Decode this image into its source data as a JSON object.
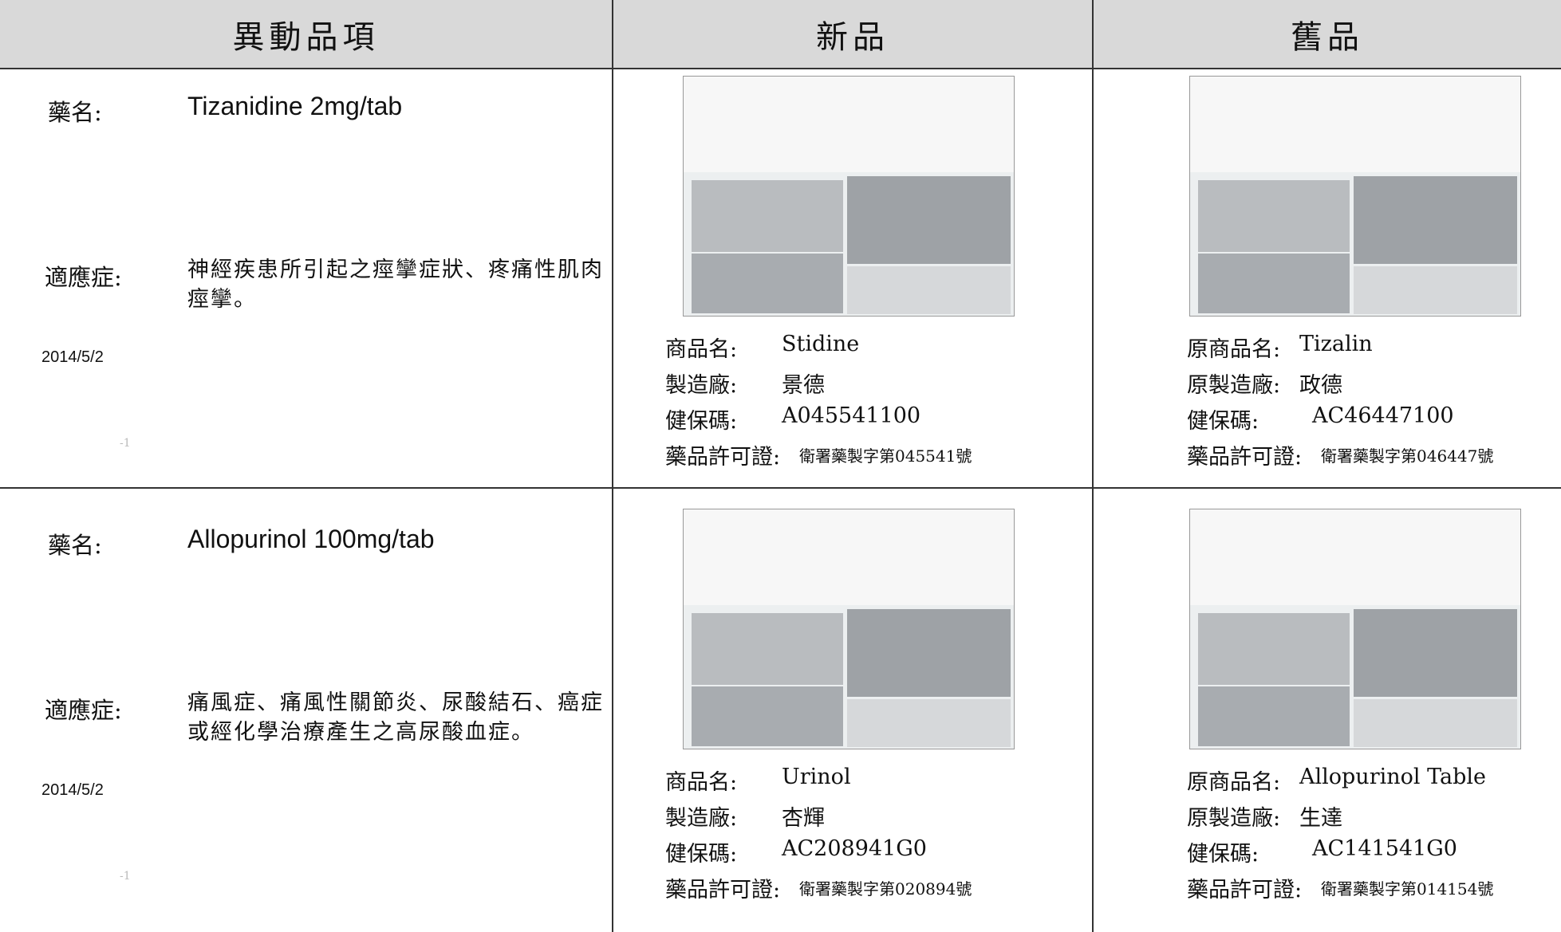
{
  "header": [
    "異動品項",
    "新品",
    "舊品"
  ],
  "rows": [
    {
      "drug_label": "藥名:",
      "drug_name": "Tizanidine 2mg/tab",
      "indication_label": "適應症:",
      "indication": "神經疾患所引起之痙攣症狀、疼痛性肌肉痙攣。",
      "date": "2014/5/2",
      "page_mark": "-1",
      "new": [
        {
          "label": "商品名:",
          "value": "Stidine"
        },
        {
          "label": "製造廠:",
          "value": "景德"
        },
        {
          "label": "健保碼:",
          "value": "A045541100"
        },
        {
          "label": "藥品許可證:",
          "value": "衛署藥製字第045541號"
        }
      ],
      "old": [
        {
          "label": "原商品名:",
          "value": "Tizalin"
        },
        {
          "label": "原製造廠:",
          "value": "政德"
        },
        {
          "label": "健保碼:",
          "value": "AC46447100"
        },
        {
          "label": "藥品許可證:",
          "value": "衛署藥製字第046447號"
        }
      ]
    },
    {
      "drug_label": "藥名:",
      "drug_name": "Allopurinol 100mg/tab",
      "indication_label": "適應症:",
      "indication": "痛風症、痛風性關節炎、尿酸結石、癌症或經化學治療產生之高尿酸血症。",
      "date": "2014/5/2",
      "page_mark": "-1",
      "new": [
        {
          "label": "商品名:",
          "value": "Urinol"
        },
        {
          "label": "製造廠:",
          "value": "杏輝"
        },
        {
          "label": "健保碼:",
          "value": "AC208941G0"
        },
        {
          "label": "藥品許可證:",
          "value": "衛署藥製字第020894號"
        }
      ],
      "old": [
        {
          "label": "原商品名:",
          "value": "Allopurinol Table"
        },
        {
          "label": "原製造廠:",
          "value": "生達"
        },
        {
          "label": "健保碼:",
          "value": "AC141541G0"
        },
        {
          "label": "藥品許可證:",
          "value": "衛署藥製字第014154號"
        }
      ]
    }
  ]
}
